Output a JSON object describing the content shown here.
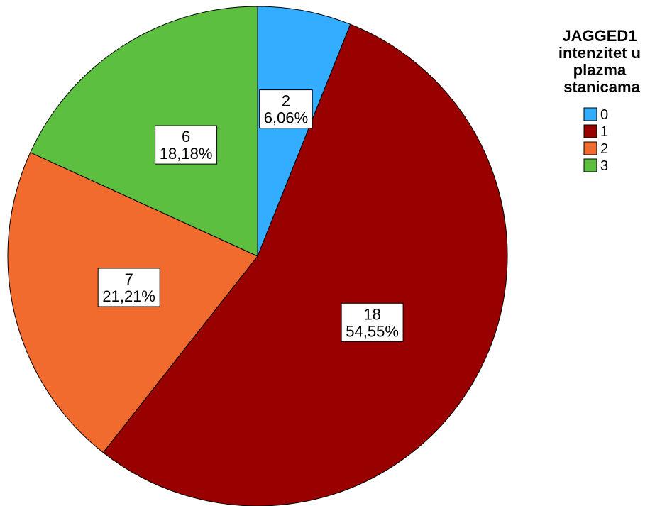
{
  "chart_data": {
    "type": "pie",
    "legend_title": [
      "JAGGED1",
      "intenzitet u",
      "plazma",
      "stanicama"
    ],
    "legend_position": "top-right",
    "slices": [
      {
        "name": "0",
        "count": "2",
        "percent": "6,06%",
        "value": 2,
        "color": "#33adff"
      },
      {
        "name": "1",
        "count": "18",
        "percent": "54,55%",
        "value": 18,
        "color": "#990000"
      },
      {
        "name": "2",
        "count": "7",
        "percent": "21,21%",
        "value": 7,
        "color": "#f26b2e"
      },
      {
        "name": "3",
        "count": "6",
        "percent": "18,18%",
        "value": 6,
        "color": "#5cbf40"
      }
    ]
  }
}
